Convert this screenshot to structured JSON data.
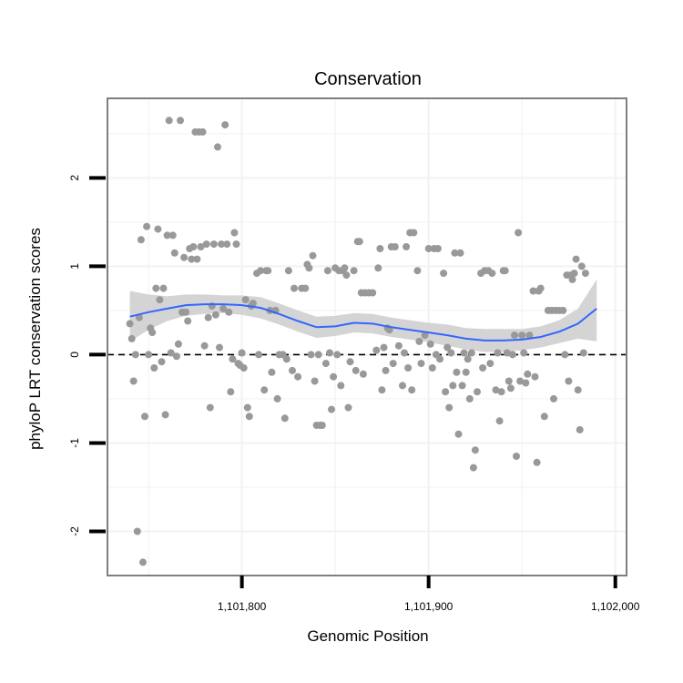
{
  "chart_data": {
    "type": "scatter",
    "title": "Conservation",
    "xlabel": "Genomic Position",
    "ylabel": "phyloP LRT conservation scores",
    "xlim": [
      1101728,
      1102006
    ],
    "ylim": [
      -2.5,
      2.9
    ],
    "x_ticks": [
      {
        "value": 1101800,
        "label": "1,101,800"
      },
      {
        "value": 1101900,
        "label": "1,101,900"
      },
      {
        "value": 1102000,
        "label": "1,102,000"
      }
    ],
    "y_ticks": [
      {
        "value": -2,
        "label": "-2"
      },
      {
        "value": -1,
        "label": "-1"
      },
      {
        "value": 0,
        "label": "0"
      },
      {
        "value": 1,
        "label": "1"
      },
      {
        "value": 2,
        "label": "2"
      }
    ],
    "reference_line": {
      "y": 0,
      "style": "dashed"
    },
    "grid": true,
    "points": [
      [
        1101740,
        0.35
      ],
      [
        1101741,
        0.18
      ],
      [
        1101742,
        -0.3
      ],
      [
        1101743,
        0.0
      ],
      [
        1101744,
        -2.0
      ],
      [
        1101745,
        0.42
      ],
      [
        1101746,
        1.3
      ],
      [
        1101747,
        -2.35
      ],
      [
        1101748,
        -0.7
      ],
      [
        1101749,
        1.45
      ],
      [
        1101750,
        0.0
      ],
      [
        1101751,
        0.3
      ],
      [
        1101752,
        0.25
      ],
      [
        1101753,
        -0.15
      ],
      [
        1101754,
        0.75
      ],
      [
        1101755,
        1.42
      ],
      [
        1101756,
        0.62
      ],
      [
        1101757,
        -0.08
      ],
      [
        1101758,
        0.75
      ],
      [
        1101759,
        -0.68
      ],
      [
        1101760,
        1.35
      ],
      [
        1101761,
        2.65
      ],
      [
        1101762,
        0.02
      ],
      [
        1101763,
        1.35
      ],
      [
        1101764,
        1.15
      ],
      [
        1101765,
        -0.02
      ],
      [
        1101766,
        0.12
      ],
      [
        1101767,
        2.65
      ],
      [
        1101768,
        0.48
      ],
      [
        1101769,
        1.1
      ],
      [
        1101770,
        0.48
      ],
      [
        1101771,
        0.38
      ],
      [
        1101772,
        1.2
      ],
      [
        1101773,
        1.08
      ],
      [
        1101774,
        1.22
      ],
      [
        1101775,
        2.52
      ],
      [
        1101776,
        1.08
      ],
      [
        1101777,
        2.52
      ],
      [
        1101778,
        1.22
      ],
      [
        1101779,
        2.52
      ],
      [
        1101780,
        0.1
      ],
      [
        1101781,
        1.25
      ],
      [
        1101782,
        0.42
      ],
      [
        1101783,
        -0.6
      ],
      [
        1101784,
        0.55
      ],
      [
        1101785,
        1.25
      ],
      [
        1101786,
        0.45
      ],
      [
        1101787,
        2.35
      ],
      [
        1101788,
        0.08
      ],
      [
        1101789,
        1.25
      ],
      [
        1101790,
        0.52
      ],
      [
        1101791,
        2.6
      ],
      [
        1101792,
        1.25
      ],
      [
        1101793,
        0.48
      ],
      [
        1101794,
        -0.42
      ],
      [
        1101795,
        -0.05
      ],
      [
        1101796,
        1.38
      ],
      [
        1101797,
        1.25
      ],
      [
        1101798,
        -0.1
      ],
      [
        1101799,
        -0.12
      ],
      [
        1101800,
        0.02
      ],
      [
        1101801,
        -0.15
      ],
      [
        1101802,
        0.62
      ],
      [
        1101803,
        -0.6
      ],
      [
        1101804,
        -0.7
      ],
      [
        1101805,
        0.55
      ],
      [
        1101806,
        0.58
      ],
      [
        1101808,
        0.92
      ],
      [
        1101809,
        0.0
      ],
      [
        1101810,
        0.95
      ],
      [
        1101812,
        -0.4
      ],
      [
        1101813,
        0.95
      ],
      [
        1101814,
        0.95
      ],
      [
        1101815,
        0.5
      ],
      [
        1101816,
        -0.2
      ],
      [
        1101818,
        0.5
      ],
      [
        1101819,
        -0.5
      ],
      [
        1101820,
        0.0
      ],
      [
        1101822,
        0.0
      ],
      [
        1101823,
        -0.72
      ],
      [
        1101824,
        -0.05
      ],
      [
        1101825,
        0.95
      ],
      [
        1101827,
        -0.18
      ],
      [
        1101828,
        0.75
      ],
      [
        1101830,
        -0.25
      ],
      [
        1101832,
        0.75
      ],
      [
        1101834,
        0.75
      ],
      [
        1101835,
        1.02
      ],
      [
        1101836,
        0.98
      ],
      [
        1101837,
        0.0
      ],
      [
        1101838,
        1.12
      ],
      [
        1101839,
        -0.3
      ],
      [
        1101840,
        -0.8
      ],
      [
        1101841,
        0.0
      ],
      [
        1101842,
        -0.8
      ],
      [
        1101843,
        -0.8
      ],
      [
        1101845,
        -0.1
      ],
      [
        1101846,
        0.95
      ],
      [
        1101847,
        0.02
      ],
      [
        1101848,
        -0.62
      ],
      [
        1101849,
        -0.25
      ],
      [
        1101850,
        0.98
      ],
      [
        1101851,
        0.0
      ],
      [
        1101852,
        0.95
      ],
      [
        1101853,
        -0.35
      ],
      [
        1101854,
        0.95
      ],
      [
        1101855,
        0.98
      ],
      [
        1101856,
        0.9
      ],
      [
        1101857,
        -0.6
      ],
      [
        1101858,
        -0.08
      ],
      [
        1101860,
        0.95
      ],
      [
        1101861,
        -0.18
      ],
      [
        1101862,
        1.28
      ],
      [
        1101863,
        1.28
      ],
      [
        1101864,
        0.7
      ],
      [
        1101865,
        -0.22
      ],
      [
        1101866,
        0.7
      ],
      [
        1101868,
        0.7
      ],
      [
        1101870,
        0.7
      ],
      [
        1101872,
        0.05
      ],
      [
        1101873,
        0.98
      ],
      [
        1101874,
        1.2
      ],
      [
        1101875,
        -0.4
      ],
      [
        1101876,
        0.08
      ],
      [
        1101877,
        -0.18
      ],
      [
        1101878,
        0.3
      ],
      [
        1101879,
        0.28
      ],
      [
        1101880,
        1.22
      ],
      [
        1101881,
        -0.1
      ],
      [
        1101882,
        1.22
      ],
      [
        1101884,
        0.1
      ],
      [
        1101886,
        -0.35
      ],
      [
        1101887,
        0.02
      ],
      [
        1101888,
        1.22
      ],
      [
        1101889,
        -0.15
      ],
      [
        1101890,
        1.38
      ],
      [
        1101891,
        -0.4
      ],
      [
        1101892,
        1.38
      ],
      [
        1101894,
        0.95
      ],
      [
        1101895,
        0.15
      ],
      [
        1101896,
        -0.1
      ],
      [
        1101898,
        0.22
      ],
      [
        1101900,
        1.2
      ],
      [
        1101901,
        0.12
      ],
      [
        1101902,
        -0.15
      ],
      [
        1101903,
        1.2
      ],
      [
        1101904,
        0.0
      ],
      [
        1101905,
        1.2
      ],
      [
        1101906,
        -0.05
      ],
      [
        1101908,
        0.92
      ],
      [
        1101909,
        -0.42
      ],
      [
        1101910,
        0.08
      ],
      [
        1101911,
        -0.6
      ],
      [
        1101912,
        0.02
      ],
      [
        1101913,
        -0.35
      ],
      [
        1101914,
        1.15
      ],
      [
        1101915,
        -0.2
      ],
      [
        1101916,
        -0.9
      ],
      [
        1101917,
        1.15
      ],
      [
        1101918,
        -0.35
      ],
      [
        1101919,
        0.02
      ],
      [
        1101920,
        -0.2
      ],
      [
        1101921,
        -0.05
      ],
      [
        1101922,
        -0.5
      ],
      [
        1101923,
        0.02
      ],
      [
        1101924,
        -1.28
      ],
      [
        1101925,
        -1.08
      ],
      [
        1101926,
        -0.42
      ],
      [
        1101928,
        0.92
      ],
      [
        1101929,
        -0.15
      ],
      [
        1101930,
        0.95
      ],
      [
        1101932,
        0.95
      ],
      [
        1101933,
        -0.1
      ],
      [
        1101934,
        0.92
      ],
      [
        1101936,
        -0.4
      ],
      [
        1101937,
        0.02
      ],
      [
        1101938,
        -0.75
      ],
      [
        1101939,
        -0.42
      ],
      [
        1101940,
        0.95
      ],
      [
        1101941,
        0.95
      ],
      [
        1101942,
        0.02
      ],
      [
        1101943,
        -0.3
      ],
      [
        1101944,
        -0.38
      ],
      [
        1101945,
        0.0
      ],
      [
        1101946,
        0.22
      ],
      [
        1101947,
        -1.15
      ],
      [
        1101948,
        1.38
      ],
      [
        1101949,
        -0.3
      ],
      [
        1101950,
        0.22
      ],
      [
        1101951,
        0.02
      ],
      [
        1101952,
        -0.32
      ],
      [
        1101953,
        -0.22
      ],
      [
        1101954,
        0.22
      ],
      [
        1101956,
        0.72
      ],
      [
        1101957,
        -0.25
      ],
      [
        1101958,
        -1.22
      ],
      [
        1101959,
        0.72
      ],
      [
        1101960,
        0.75
      ],
      [
        1101962,
        -0.7
      ],
      [
        1101964,
        0.5
      ],
      [
        1101966,
        0.5
      ],
      [
        1101967,
        -0.5
      ],
      [
        1101968,
        0.5
      ],
      [
        1101970,
        0.5
      ],
      [
        1101972,
        0.5
      ],
      [
        1101973,
        0.0
      ],
      [
        1101974,
        0.9
      ],
      [
        1101975,
        -0.3
      ],
      [
        1101976,
        0.9
      ],
      [
        1101977,
        0.85
      ],
      [
        1101978,
        0.92
      ],
      [
        1101979,
        1.08
      ],
      [
        1101980,
        -0.4
      ],
      [
        1101981,
        -0.85
      ],
      [
        1101982,
        1.0
      ],
      [
        1101983,
        0.02
      ],
      [
        1101984,
        0.92
      ]
    ],
    "smooth": {
      "x": [
        1101740,
        1101750,
        1101760,
        1101770,
        1101780,
        1101790,
        1101800,
        1101810,
        1101820,
        1101830,
        1101840,
        1101850,
        1101860,
        1101870,
        1101880,
        1101890,
        1101900,
        1101910,
        1101920,
        1101930,
        1101940,
        1101950,
        1101960,
        1101970,
        1101980,
        1101990
      ],
      "y": [
        0.43,
        0.48,
        0.52,
        0.56,
        0.57,
        0.57,
        0.56,
        0.53,
        0.46,
        0.38,
        0.31,
        0.32,
        0.36,
        0.35,
        0.31,
        0.28,
        0.25,
        0.22,
        0.18,
        0.16,
        0.16,
        0.17,
        0.2,
        0.26,
        0.35,
        0.52
      ],
      "lower": [
        0.15,
        0.28,
        0.38,
        0.44,
        0.46,
        0.47,
        0.45,
        0.41,
        0.34,
        0.26,
        0.19,
        0.21,
        0.25,
        0.24,
        0.2,
        0.17,
        0.14,
        0.1,
        0.06,
        0.03,
        0.03,
        0.05,
        0.08,
        0.13,
        0.18,
        0.15
      ],
      "upper": [
        0.72,
        0.68,
        0.66,
        0.68,
        0.68,
        0.67,
        0.67,
        0.65,
        0.58,
        0.5,
        0.43,
        0.44,
        0.47,
        0.46,
        0.42,
        0.39,
        0.36,
        0.34,
        0.3,
        0.29,
        0.29,
        0.29,
        0.32,
        0.39,
        0.52,
        0.85
      ]
    },
    "colors": {
      "points": "#999999",
      "smooth_line": "#3366FF",
      "ribbon": "#CCCCCC",
      "border": "#7f7f7f",
      "grid": "#f2f2f2"
    }
  }
}
